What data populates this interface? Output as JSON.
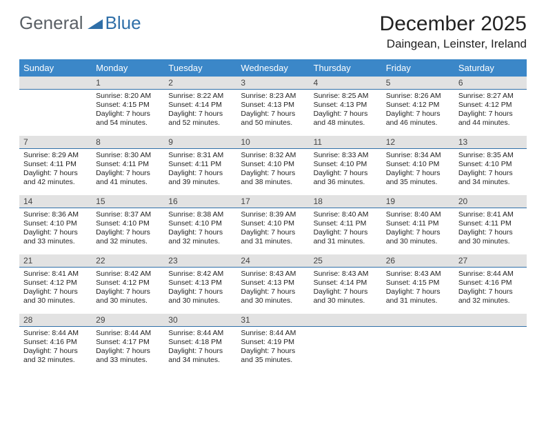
{
  "brand": {
    "part1": "General",
    "part2": "Blue"
  },
  "title": "December 2025",
  "location": "Daingean, Leinster, Ireland",
  "colors": {
    "header_bg": "#3b87c8",
    "header_text": "#ffffff",
    "daynum_bg": "#e2e2e2",
    "daynum_border": "#2f6fa8",
    "body_text": "#222222",
    "brand_gray": "#5a6066",
    "brand_blue": "#2f6fa8"
  },
  "day_headers": [
    "Sunday",
    "Monday",
    "Tuesday",
    "Wednesday",
    "Thursday",
    "Friday",
    "Saturday"
  ],
  "weeks": [
    [
      null,
      {
        "n": "1",
        "sr": "Sunrise: 8:20 AM",
        "ss": "Sunset: 4:15 PM",
        "dl1": "Daylight: 7 hours",
        "dl2": "and 54 minutes."
      },
      {
        "n": "2",
        "sr": "Sunrise: 8:22 AM",
        "ss": "Sunset: 4:14 PM",
        "dl1": "Daylight: 7 hours",
        "dl2": "and 52 minutes."
      },
      {
        "n": "3",
        "sr": "Sunrise: 8:23 AM",
        "ss": "Sunset: 4:13 PM",
        "dl1": "Daylight: 7 hours",
        "dl2": "and 50 minutes."
      },
      {
        "n": "4",
        "sr": "Sunrise: 8:25 AM",
        "ss": "Sunset: 4:13 PM",
        "dl1": "Daylight: 7 hours",
        "dl2": "and 48 minutes."
      },
      {
        "n": "5",
        "sr": "Sunrise: 8:26 AM",
        "ss": "Sunset: 4:12 PM",
        "dl1": "Daylight: 7 hours",
        "dl2": "and 46 minutes."
      },
      {
        "n": "6",
        "sr": "Sunrise: 8:27 AM",
        "ss": "Sunset: 4:12 PM",
        "dl1": "Daylight: 7 hours",
        "dl2": "and 44 minutes."
      }
    ],
    [
      {
        "n": "7",
        "sr": "Sunrise: 8:29 AM",
        "ss": "Sunset: 4:11 PM",
        "dl1": "Daylight: 7 hours",
        "dl2": "and 42 minutes."
      },
      {
        "n": "8",
        "sr": "Sunrise: 8:30 AM",
        "ss": "Sunset: 4:11 PM",
        "dl1": "Daylight: 7 hours",
        "dl2": "and 41 minutes."
      },
      {
        "n": "9",
        "sr": "Sunrise: 8:31 AM",
        "ss": "Sunset: 4:11 PM",
        "dl1": "Daylight: 7 hours",
        "dl2": "and 39 minutes."
      },
      {
        "n": "10",
        "sr": "Sunrise: 8:32 AM",
        "ss": "Sunset: 4:10 PM",
        "dl1": "Daylight: 7 hours",
        "dl2": "and 38 minutes."
      },
      {
        "n": "11",
        "sr": "Sunrise: 8:33 AM",
        "ss": "Sunset: 4:10 PM",
        "dl1": "Daylight: 7 hours",
        "dl2": "and 36 minutes."
      },
      {
        "n": "12",
        "sr": "Sunrise: 8:34 AM",
        "ss": "Sunset: 4:10 PM",
        "dl1": "Daylight: 7 hours",
        "dl2": "and 35 minutes."
      },
      {
        "n": "13",
        "sr": "Sunrise: 8:35 AM",
        "ss": "Sunset: 4:10 PM",
        "dl1": "Daylight: 7 hours",
        "dl2": "and 34 minutes."
      }
    ],
    [
      {
        "n": "14",
        "sr": "Sunrise: 8:36 AM",
        "ss": "Sunset: 4:10 PM",
        "dl1": "Daylight: 7 hours",
        "dl2": "and 33 minutes."
      },
      {
        "n": "15",
        "sr": "Sunrise: 8:37 AM",
        "ss": "Sunset: 4:10 PM",
        "dl1": "Daylight: 7 hours",
        "dl2": "and 32 minutes."
      },
      {
        "n": "16",
        "sr": "Sunrise: 8:38 AM",
        "ss": "Sunset: 4:10 PM",
        "dl1": "Daylight: 7 hours",
        "dl2": "and 32 minutes."
      },
      {
        "n": "17",
        "sr": "Sunrise: 8:39 AM",
        "ss": "Sunset: 4:10 PM",
        "dl1": "Daylight: 7 hours",
        "dl2": "and 31 minutes."
      },
      {
        "n": "18",
        "sr": "Sunrise: 8:40 AM",
        "ss": "Sunset: 4:11 PM",
        "dl1": "Daylight: 7 hours",
        "dl2": "and 31 minutes."
      },
      {
        "n": "19",
        "sr": "Sunrise: 8:40 AM",
        "ss": "Sunset: 4:11 PM",
        "dl1": "Daylight: 7 hours",
        "dl2": "and 30 minutes."
      },
      {
        "n": "20",
        "sr": "Sunrise: 8:41 AM",
        "ss": "Sunset: 4:11 PM",
        "dl1": "Daylight: 7 hours",
        "dl2": "and 30 minutes."
      }
    ],
    [
      {
        "n": "21",
        "sr": "Sunrise: 8:41 AM",
        "ss": "Sunset: 4:12 PM",
        "dl1": "Daylight: 7 hours",
        "dl2": "and 30 minutes."
      },
      {
        "n": "22",
        "sr": "Sunrise: 8:42 AM",
        "ss": "Sunset: 4:12 PM",
        "dl1": "Daylight: 7 hours",
        "dl2": "and 30 minutes."
      },
      {
        "n": "23",
        "sr": "Sunrise: 8:42 AM",
        "ss": "Sunset: 4:13 PM",
        "dl1": "Daylight: 7 hours",
        "dl2": "and 30 minutes."
      },
      {
        "n": "24",
        "sr": "Sunrise: 8:43 AM",
        "ss": "Sunset: 4:13 PM",
        "dl1": "Daylight: 7 hours",
        "dl2": "and 30 minutes."
      },
      {
        "n": "25",
        "sr": "Sunrise: 8:43 AM",
        "ss": "Sunset: 4:14 PM",
        "dl1": "Daylight: 7 hours",
        "dl2": "and 30 minutes."
      },
      {
        "n": "26",
        "sr": "Sunrise: 8:43 AM",
        "ss": "Sunset: 4:15 PM",
        "dl1": "Daylight: 7 hours",
        "dl2": "and 31 minutes."
      },
      {
        "n": "27",
        "sr": "Sunrise: 8:44 AM",
        "ss": "Sunset: 4:16 PM",
        "dl1": "Daylight: 7 hours",
        "dl2": "and 32 minutes."
      }
    ],
    [
      {
        "n": "28",
        "sr": "Sunrise: 8:44 AM",
        "ss": "Sunset: 4:16 PM",
        "dl1": "Daylight: 7 hours",
        "dl2": "and 32 minutes."
      },
      {
        "n": "29",
        "sr": "Sunrise: 8:44 AM",
        "ss": "Sunset: 4:17 PM",
        "dl1": "Daylight: 7 hours",
        "dl2": "and 33 minutes."
      },
      {
        "n": "30",
        "sr": "Sunrise: 8:44 AM",
        "ss": "Sunset: 4:18 PM",
        "dl1": "Daylight: 7 hours",
        "dl2": "and 34 minutes."
      },
      {
        "n": "31",
        "sr": "Sunrise: 8:44 AM",
        "ss": "Sunset: 4:19 PM",
        "dl1": "Daylight: 7 hours",
        "dl2": "and 35 minutes."
      },
      null,
      null,
      null
    ]
  ]
}
